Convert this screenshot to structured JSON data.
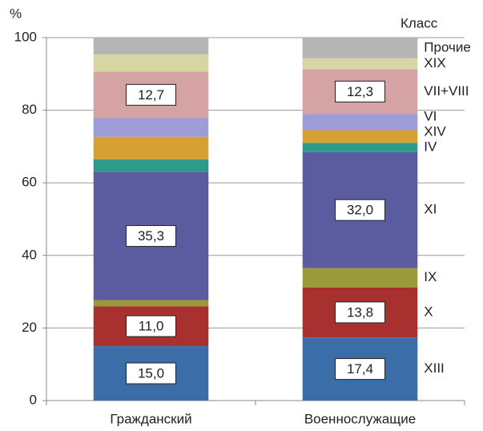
{
  "chart_data": {
    "type": "stacked_bar",
    "ylabel": "%",
    "legend_title": "Класс",
    "categories": [
      "Гражданский",
      "Военнослужащие"
    ],
    "ylim": [
      0,
      100
    ],
    "yticks": [
      0,
      20,
      40,
      60,
      80,
      100
    ],
    "grid": true,
    "series": [
      {
        "name": "XIII",
        "color": "#3b6ea8",
        "values": [
          15.0,
          17.4
        ],
        "value_labels": [
          "15,0",
          "17,4"
        ]
      },
      {
        "name": "X",
        "color": "#a8302f",
        "values": [
          11.0,
          13.8
        ],
        "value_labels": [
          "11,0",
          "13,8"
        ]
      },
      {
        "name": "IX",
        "color": "#9c9a38",
        "values": [
          1.7,
          5.3
        ]
      },
      {
        "name": "XI",
        "color": "#5b5b9f",
        "values": [
          35.3,
          32.0
        ],
        "value_labels": [
          "35,3",
          "32,0"
        ]
      },
      {
        "name": "IV",
        "color": "#2e9a8c",
        "values": [
          3.5,
          2.5
        ]
      },
      {
        "name": "XIV",
        "color": "#d6a032",
        "values": [
          6.2,
          3.5
        ]
      },
      {
        "name": "VI",
        "color": "#9d9cd6",
        "values": [
          5.2,
          4.5
        ]
      },
      {
        "name": "VII+VIII",
        "color": "#d6a3a4",
        "values": [
          12.7,
          12.3
        ],
        "value_labels": [
          "12,7",
          "12,3"
        ]
      },
      {
        "name": "XIX",
        "color": "#d7d6a2",
        "values": [
          4.8,
          3.0
        ]
      },
      {
        "name": "Прочие",
        "color": "#b5b5b5",
        "values": [
          4.6,
          5.7
        ]
      }
    ]
  }
}
